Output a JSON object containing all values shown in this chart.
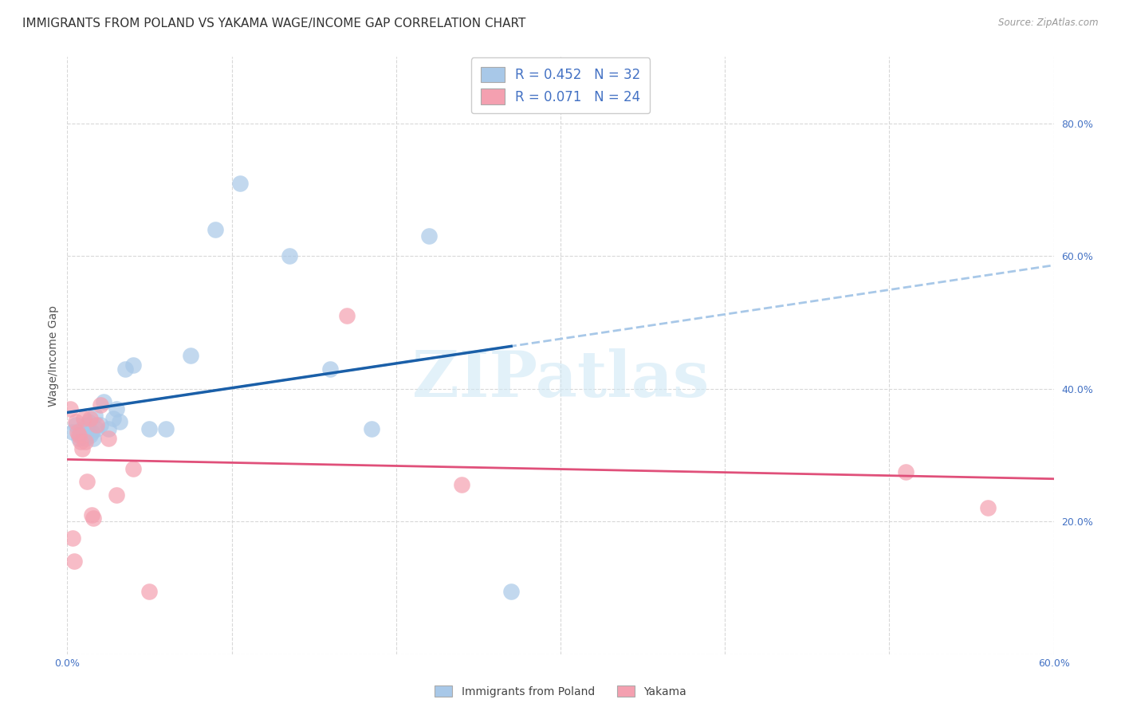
{
  "title": "IMMIGRANTS FROM POLAND VS YAKAMA WAGE/INCOME GAP CORRELATION CHART",
  "source": "Source: ZipAtlas.com",
  "ylabel": "Wage/Income Gap",
  "xlim": [
    0.0,
    0.6
  ],
  "ylim": [
    0.0,
    0.9
  ],
  "xticks": [
    0.0,
    0.1,
    0.2,
    0.3,
    0.4,
    0.5,
    0.6
  ],
  "xtick_labels_show": [
    "0.0%",
    "",
    "",
    "",
    "",
    "",
    "60.0%"
  ],
  "yticks": [
    0.0,
    0.2,
    0.4,
    0.6,
    0.8
  ],
  "ytick_labels_right": [
    "",
    "20.0%",
    "40.0%",
    "60.0%",
    "80.0%"
  ],
  "legend_poland": "Immigrants from Poland",
  "legend_yakama": "Yakama",
  "R_poland": "0.452",
  "N_poland": "32",
  "R_yakama": "0.071",
  "N_yakama": "24",
  "color_poland": "#a8c8e8",
  "color_yakama": "#f4a0b0",
  "trendline_poland_color": "#1a5fa8",
  "trendline_yakama_color": "#e0507a",
  "dashed_line_color": "#a8c8e8",
  "background_color": "#ffffff",
  "grid_color": "#d8d8d8",
  "axis_label_color": "#4472c4",
  "watermark_color": "#d0e8f5",
  "poland_scatter_x": [
    0.003,
    0.005,
    0.007,
    0.008,
    0.009,
    0.01,
    0.011,
    0.012,
    0.013,
    0.014,
    0.015,
    0.016,
    0.017,
    0.018,
    0.02,
    0.022,
    0.025,
    0.028,
    0.03,
    0.032,
    0.035,
    0.04,
    0.05,
    0.06,
    0.075,
    0.09,
    0.105,
    0.135,
    0.16,
    0.185,
    0.22,
    0.27
  ],
  "poland_scatter_y": [
    0.335,
    0.345,
    0.325,
    0.33,
    0.34,
    0.33,
    0.325,
    0.345,
    0.35,
    0.33,
    0.335,
    0.325,
    0.36,
    0.34,
    0.345,
    0.38,
    0.34,
    0.355,
    0.37,
    0.35,
    0.43,
    0.435,
    0.34,
    0.34,
    0.45,
    0.64,
    0.71,
    0.6,
    0.43,
    0.34,
    0.63,
    0.095
  ],
  "yakama_scatter_x": [
    0.002,
    0.003,
    0.004,
    0.005,
    0.006,
    0.007,
    0.008,
    0.009,
    0.01,
    0.011,
    0.012,
    0.014,
    0.015,
    0.016,
    0.018,
    0.02,
    0.025,
    0.03,
    0.04,
    0.05,
    0.17,
    0.24,
    0.51,
    0.56
  ],
  "yakama_scatter_y": [
    0.37,
    0.175,
    0.14,
    0.35,
    0.335,
    0.33,
    0.32,
    0.31,
    0.355,
    0.32,
    0.26,
    0.355,
    0.21,
    0.205,
    0.345,
    0.375,
    0.325,
    0.24,
    0.28,
    0.095,
    0.51,
    0.255,
    0.275,
    0.22
  ],
  "watermark": "ZIPatlas",
  "title_fontsize": 11,
  "axis_tick_fontsize": 9,
  "ylabel_fontsize": 10,
  "legend_R_color": "#000000",
  "legend_N_value_color": "#e03060",
  "legend_R_value_color": "#2060c0"
}
